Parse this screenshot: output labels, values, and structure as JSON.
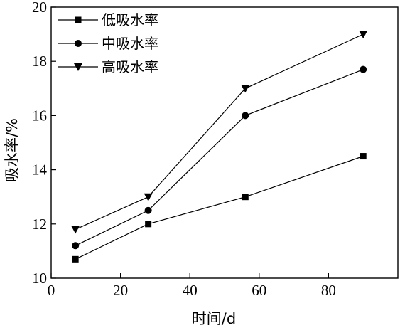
{
  "chart_data": {
    "type": "line",
    "title": "",
    "xlabel": "时间/d",
    "ylabel": "吸水率/%",
    "xlim": [
      0,
      100
    ],
    "ylim": [
      10,
      20
    ],
    "xticks": [
      0,
      20,
      40,
      60,
      80
    ],
    "yticks": [
      10,
      12,
      14,
      16,
      18,
      20
    ],
    "x": [
      7,
      28,
      56,
      90
    ],
    "legend_position": "top-left",
    "grid": false,
    "series": [
      {
        "name": "低吸水率",
        "marker": "square",
        "values": [
          10.7,
          12.0,
          13.0,
          14.5
        ]
      },
      {
        "name": "中吸水率",
        "marker": "circle",
        "values": [
          11.2,
          12.5,
          16.0,
          17.7
        ]
      },
      {
        "name": "高吸水率",
        "marker": "triangle-down",
        "values": [
          11.8,
          13.0,
          17.0,
          19.0
        ]
      }
    ]
  }
}
